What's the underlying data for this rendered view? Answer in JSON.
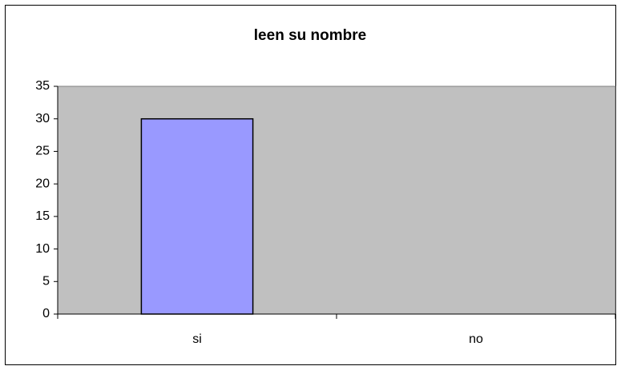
{
  "chart_data": {
    "type": "bar",
    "title": "leen su nombre",
    "categories": [
      "si",
      "no"
    ],
    "values": [
      30,
      0
    ],
    "color": "#9999ff",
    "ylim": [
      0,
      35
    ],
    "yticks": [
      0,
      5,
      10,
      15,
      20,
      25,
      30,
      35
    ],
    "grid": false,
    "plot_background": "#c0c0c0"
  }
}
